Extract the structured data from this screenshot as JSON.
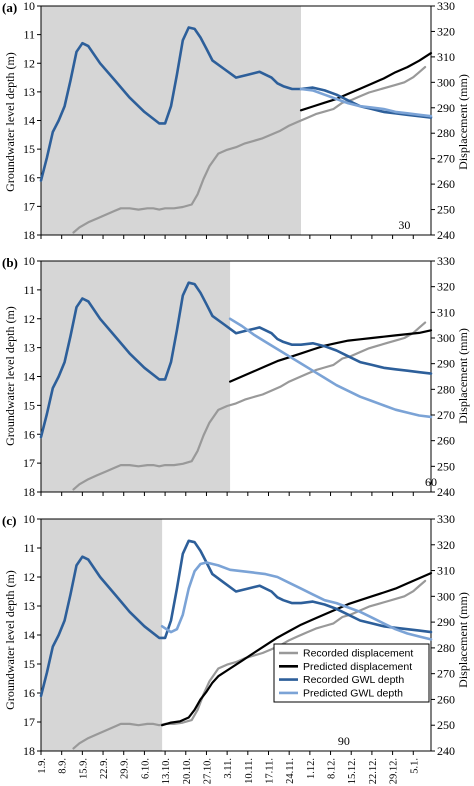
{
  "figure": {
    "left_axis_label": "Groundwater level depth (m)",
    "right_axis_label": "Displacement (mm)"
  },
  "chart_data": [
    {
      "type": "line",
      "panel_label": "(a)",
      "window_label": "30",
      "shaded_until_day": 88,
      "x_tick_labels": [
        "1.9.",
        "8.9.",
        "15.9.",
        "22.9.",
        "29.9.",
        "6.10.",
        "13.10.",
        "20.10.",
        "27.10.",
        "3.11.",
        "10.11.",
        "17.11.",
        "24.11.",
        "1.12.",
        "8.12.",
        "15.12.",
        "22.12.",
        "29.12.",
        "5.1."
      ],
      "x_tick_day_offsets": [
        0,
        7,
        14,
        21,
        28,
        35,
        42,
        49,
        56,
        63,
        70,
        77,
        84,
        91,
        98,
        105,
        112,
        119,
        126
      ],
      "left_axis": {
        "label": "Groundwater level depth (m)",
        "range": [
          18,
          10
        ],
        "ticks": [
          10,
          11,
          12,
          13,
          14,
          15,
          16,
          17,
          18
        ],
        "inverted": true
      },
      "right_axis": {
        "label": "Displacement (mm)",
        "range": [
          240,
          330
        ],
        "ticks": [
          240,
          250,
          260,
          270,
          280,
          290,
          300,
          310,
          320,
          330
        ]
      },
      "series": [
        {
          "name": "Recorded displacement",
          "axis": "right",
          "color": "#999999",
          "x": [
            11,
            13,
            16,
            19,
            22,
            25,
            27,
            30,
            33,
            36,
            38,
            40,
            42,
            45,
            48,
            51,
            53,
            55,
            57,
            60,
            63,
            66,
            69,
            72,
            75,
            78,
            81,
            84,
            87,
            90,
            93,
            96,
            99,
            102,
            105,
            108,
            111,
            114,
            117,
            120,
            123,
            126,
            128,
            130
          ],
          "y": [
            241,
            243,
            245,
            246.5,
            248,
            249.5,
            250.5,
            250.5,
            250,
            250.5,
            250.5,
            250,
            250.5,
            250.5,
            251,
            252,
            256,
            262,
            267,
            272,
            273.5,
            274.5,
            276,
            277,
            278,
            279.5,
            281,
            283,
            284.5,
            286,
            287.5,
            288.5,
            289.5,
            292,
            293,
            294.5,
            296,
            297,
            298,
            299,
            300,
            302,
            304,
            306
          ]
        },
        {
          "name": "Predicted displacement",
          "axis": "right",
          "color": "#000000",
          "x": [
            88,
            92,
            96,
            100,
            104,
            108,
            112,
            116,
            120,
            124,
            128,
            132
          ],
          "y": [
            289,
            290.5,
            292,
            293.5,
            295.5,
            297.5,
            299.5,
            301.5,
            304,
            306,
            308.5,
            311.5
          ]
        },
        {
          "name": "Recorded GWL depth",
          "axis": "left",
          "color": "#2d5f9a",
          "x": [
            0,
            2,
            4,
            6,
            8,
            10,
            12,
            14,
            16,
            20,
            25,
            30,
            35,
            40,
            42,
            44,
            46,
            48,
            50,
            52,
            54,
            56,
            58,
            62,
            66,
            70,
            74,
            78,
            80,
            82,
            85,
            88,
            92,
            96,
            100,
            104,
            108,
            112,
            116,
            120,
            124,
            128,
            132
          ],
          "y": [
            16.1,
            15.3,
            14.4,
            14,
            13.5,
            12.6,
            11.6,
            11.3,
            11.4,
            12,
            12.6,
            13.2,
            13.7,
            14.1,
            14.1,
            13.5,
            12.4,
            11.2,
            10.75,
            10.8,
            11.1,
            11.5,
            11.9,
            12.2,
            12.5,
            12.4,
            12.3,
            12.5,
            12.7,
            12.8,
            12.9,
            12.9,
            12.85,
            12.95,
            13.1,
            13.3,
            13.5,
            13.6,
            13.7,
            13.75,
            13.8,
            13.85,
            13.9
          ]
        },
        {
          "name": "Predicted GWL depth",
          "axis": "left",
          "color": "#7ba3d6",
          "x": [
            88,
            92,
            96,
            100,
            104,
            108,
            112,
            116,
            120,
            124,
            128,
            132
          ],
          "y": [
            12.9,
            12.95,
            13.1,
            13.25,
            13.4,
            13.5,
            13.55,
            13.6,
            13.7,
            13.75,
            13.8,
            13.85
          ]
        }
      ]
    },
    {
      "type": "line",
      "panel_label": "(b)",
      "window_label": "60",
      "shaded_until_day": 64,
      "x_tick_labels": [
        "1.9.",
        "8.9.",
        "15.9.",
        "22.9.",
        "29.9.",
        "6.10.",
        "13.10.",
        "20.10.",
        "27.10.",
        "3.11.",
        "10.11.",
        "17.11.",
        "24.11.",
        "1.12.",
        "8.12.",
        "15.12.",
        "22.12.",
        "29.12.",
        "5.1."
      ],
      "x_tick_day_offsets": [
        0,
        7,
        14,
        21,
        28,
        35,
        42,
        49,
        56,
        63,
        70,
        77,
        84,
        91,
        98,
        105,
        112,
        119,
        126
      ],
      "left_axis": {
        "label": "Groundwater level depth (m)",
        "range": [
          18,
          10
        ],
        "ticks": [
          10,
          11,
          12,
          13,
          14,
          15,
          16,
          17,
          18
        ],
        "inverted": true
      },
      "right_axis": {
        "label": "Displacement (mm)",
        "range": [
          240,
          330
        ],
        "ticks": [
          240,
          250,
          260,
          270,
          280,
          290,
          300,
          310,
          320,
          330
        ]
      },
      "series": [
        {
          "name": "Recorded displacement",
          "axis": "right",
          "color": "#999999",
          "x": [
            11,
            13,
            16,
            19,
            22,
            25,
            27,
            30,
            33,
            36,
            38,
            40,
            42,
            45,
            48,
            51,
            53,
            55,
            57,
            60,
            63,
            66,
            69,
            72,
            75,
            78,
            81,
            84,
            87,
            90,
            93,
            96,
            99,
            102,
            105,
            108,
            111,
            114,
            117,
            120,
            123,
            126,
            128,
            130
          ],
          "y": [
            241,
            243,
            245,
            246.5,
            248,
            249.5,
            250.5,
            250.5,
            250,
            250.5,
            250.5,
            250,
            250.5,
            250.5,
            251,
            252,
            256,
            262,
            267,
            272,
            273.5,
            274.5,
            276,
            277,
            278,
            279.5,
            281,
            283,
            284.5,
            286,
            287.5,
            288.5,
            289.5,
            292,
            293,
            294.5,
            296,
            297,
            298,
            299,
            300,
            302,
            304,
            306
          ]
        },
        {
          "name": "Predicted displacement",
          "axis": "right",
          "color": "#000000",
          "x": [
            64,
            68,
            72,
            76,
            80,
            84,
            88,
            92,
            96,
            100,
            104,
            108,
            112,
            116,
            120,
            124,
            128,
            132
          ],
          "y": [
            283,
            285,
            287,
            289,
            291,
            292.5,
            294,
            295.5,
            297,
            298,
            299,
            299.5,
            300,
            300.5,
            301,
            301.5,
            302,
            303
          ]
        },
        {
          "name": "Recorded GWL depth",
          "axis": "left",
          "color": "#2d5f9a",
          "x": [
            0,
            2,
            4,
            6,
            8,
            10,
            12,
            14,
            16,
            20,
            25,
            30,
            35,
            40,
            42,
            44,
            46,
            48,
            50,
            52,
            54,
            56,
            58,
            62,
            66,
            70,
            74,
            78,
            80,
            82,
            85,
            88,
            92,
            96,
            100,
            104,
            108,
            112,
            116,
            120,
            124,
            128,
            132
          ],
          "y": [
            16.1,
            15.3,
            14.4,
            14,
            13.5,
            12.6,
            11.6,
            11.3,
            11.4,
            12,
            12.6,
            13.2,
            13.7,
            14.1,
            14.1,
            13.5,
            12.4,
            11.2,
            10.75,
            10.8,
            11.1,
            11.5,
            11.9,
            12.2,
            12.5,
            12.4,
            12.3,
            12.5,
            12.7,
            12.8,
            12.9,
            12.9,
            12.85,
            12.95,
            13.1,
            13.3,
            13.5,
            13.6,
            13.7,
            13.75,
            13.8,
            13.85,
            13.9
          ]
        },
        {
          "name": "Predicted GWL depth",
          "axis": "left",
          "color": "#7ba3d6",
          "x": [
            64,
            68,
            72,
            76,
            80,
            84,
            88,
            92,
            96,
            100,
            104,
            108,
            112,
            116,
            120,
            124,
            128,
            132
          ],
          "y": [
            12.0,
            12.25,
            12.55,
            12.8,
            13.05,
            13.3,
            13.55,
            13.8,
            14.05,
            14.3,
            14.5,
            14.7,
            14.85,
            15.0,
            15.15,
            15.25,
            15.35,
            15.4
          ]
        }
      ]
    },
    {
      "type": "line",
      "panel_label": "(c)",
      "window_label": "90",
      "shaded_until_day": 41,
      "x_tick_labels": [
        "1.9.",
        "8.9.",
        "15.9.",
        "22.9.",
        "29.9.",
        "6.10.",
        "13.10.",
        "20.10.",
        "27.10.",
        "3.11.",
        "10.11.",
        "17.11.",
        "24.11.",
        "1.12.",
        "8.12.",
        "15.12.",
        "22.12.",
        "29.12.",
        "5.1."
      ],
      "x_tick_day_offsets": [
        0,
        7,
        14,
        21,
        28,
        35,
        42,
        49,
        56,
        63,
        70,
        77,
        84,
        91,
        98,
        105,
        112,
        119,
        126
      ],
      "left_axis": {
        "label": "Groundwater level depth (m)",
        "range": [
          18,
          10
        ],
        "ticks": [
          10,
          11,
          12,
          13,
          14,
          15,
          16,
          17,
          18
        ],
        "inverted": true
      },
      "right_axis": {
        "label": "Displacement (mm)",
        "range": [
          240,
          330
        ],
        "ticks": [
          240,
          250,
          260,
          270,
          280,
          290,
          300,
          310,
          320,
          330
        ]
      },
      "legend": {
        "position": "lower-right",
        "entries": [
          "Recorded displacement",
          "Predicted displacement",
          "Recorded GWL depth",
          "Predicted GWL depth"
        ]
      },
      "series": [
        {
          "name": "Recorded displacement",
          "axis": "right",
          "color": "#999999",
          "x": [
            11,
            13,
            16,
            19,
            22,
            25,
            27,
            30,
            33,
            36,
            38,
            40,
            42,
            45,
            48,
            51,
            53,
            55,
            57,
            60,
            63,
            66,
            69,
            72,
            75,
            78,
            81,
            84,
            87,
            90,
            93,
            96,
            99,
            102,
            105,
            108,
            111,
            114,
            117,
            120,
            123,
            126,
            128,
            130
          ],
          "y": [
            241,
            243,
            245,
            246.5,
            248,
            249.5,
            250.5,
            250.5,
            250,
            250.5,
            250.5,
            250,
            250.5,
            250.5,
            251,
            252,
            256,
            262,
            267,
            272,
            273.5,
            274.5,
            276,
            277,
            278,
            279.5,
            281,
            283,
            284.5,
            286,
            287.5,
            288.5,
            289.5,
            292,
            293,
            294.5,
            296,
            297,
            298,
            299,
            300,
            302,
            304,
            306
          ]
        },
        {
          "name": "Predicted displacement",
          "axis": "right",
          "color": "#000000",
          "x": [
            41,
            44,
            47,
            50,
            52,
            54,
            56,
            58,
            60,
            64,
            68,
            72,
            76,
            80,
            84,
            88,
            92,
            96,
            100,
            104,
            108,
            112,
            116,
            120,
            124,
            128,
            132
          ],
          "y": [
            250,
            251,
            251.5,
            253,
            256,
            260,
            263,
            266.5,
            269,
            272,
            275,
            278,
            281,
            284,
            286.5,
            289,
            291,
            293,
            295,
            297,
            298.5,
            300,
            301.5,
            303,
            305,
            307,
            309
          ]
        },
        {
          "name": "Recorded GWL depth",
          "axis": "left",
          "color": "#2d5f9a",
          "x": [
            0,
            2,
            4,
            6,
            8,
            10,
            12,
            14,
            16,
            20,
            25,
            30,
            35,
            40,
            42,
            44,
            46,
            48,
            50,
            52,
            54,
            56,
            58,
            62,
            66,
            70,
            74,
            78,
            80,
            82,
            85,
            88,
            92,
            96,
            100,
            104,
            108,
            112,
            116,
            120,
            124,
            128,
            132
          ],
          "y": [
            16.1,
            15.3,
            14.4,
            14,
            13.5,
            12.6,
            11.6,
            11.3,
            11.4,
            12,
            12.6,
            13.2,
            13.7,
            14.1,
            14.1,
            13.5,
            12.4,
            11.2,
            10.75,
            10.8,
            11.1,
            11.5,
            11.9,
            12.2,
            12.5,
            12.4,
            12.3,
            12.5,
            12.7,
            12.8,
            12.9,
            12.9,
            12.85,
            12.95,
            13.1,
            13.3,
            13.5,
            13.6,
            13.7,
            13.75,
            13.8,
            13.85,
            13.9
          ]
        },
        {
          "name": "Predicted GWL depth",
          "axis": "left",
          "color": "#7ba3d6",
          "x": [
            41,
            44,
            46,
            48,
            50,
            52,
            54,
            56,
            60,
            64,
            68,
            72,
            76,
            80,
            84,
            88,
            92,
            96,
            100,
            104,
            108,
            112,
            116,
            120,
            124,
            128,
            132
          ],
          "y": [
            13.7,
            13.9,
            13.8,
            13.3,
            12.4,
            11.8,
            11.55,
            11.5,
            11.6,
            11.75,
            11.8,
            11.85,
            11.9,
            12.0,
            12.2,
            12.4,
            12.6,
            12.8,
            12.9,
            13.05,
            13.2,
            13.4,
            13.6,
            13.8,
            13.95,
            14.05,
            14.15
          ]
        }
      ]
    }
  ]
}
